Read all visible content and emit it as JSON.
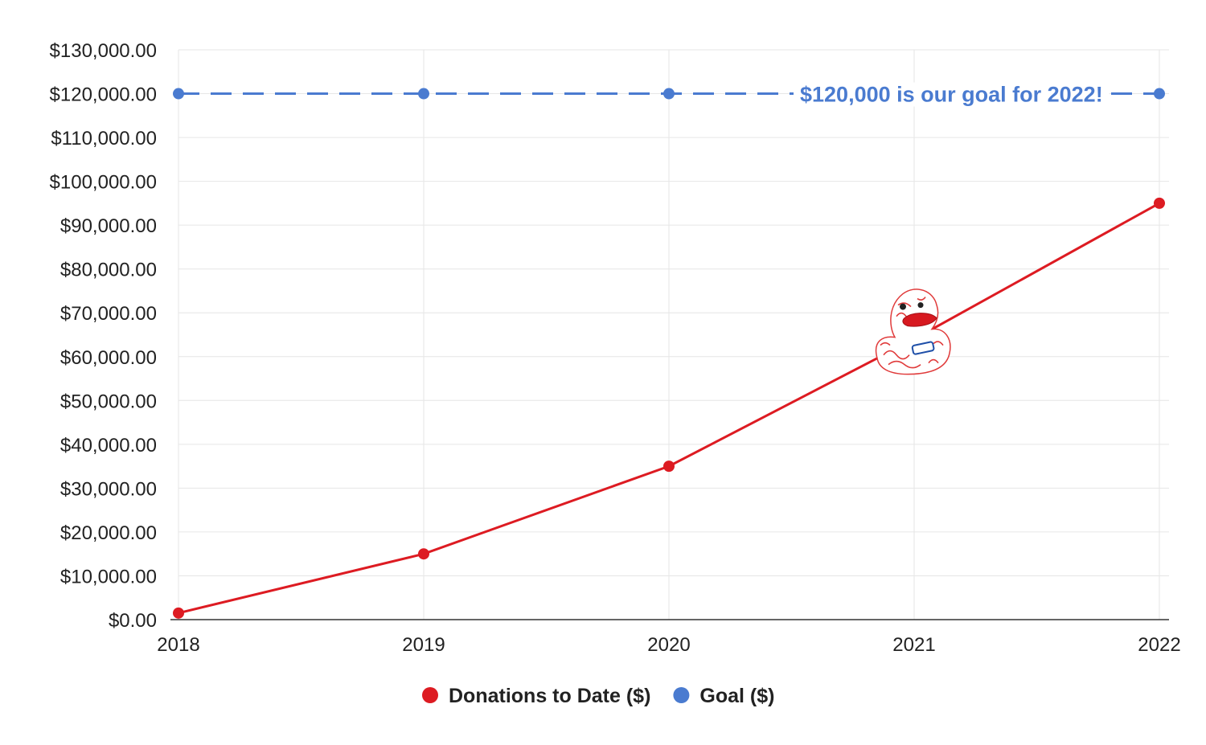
{
  "chart_data": {
    "type": "line",
    "x": [
      2018,
      2019,
      2020,
      2021,
      2022
    ],
    "xticks": [
      "2018",
      "2019",
      "2020",
      "2021",
      "2022"
    ],
    "ylim": [
      0,
      130000
    ],
    "yticks": [
      "$0.00",
      "$10,000.00",
      "$20,000.00",
      "$30,000.00",
      "$40,000.00",
      "$50,000.00",
      "$60,000.00",
      "$70,000.00",
      "$80,000.00",
      "$90,000.00",
      "$100,000.00",
      "$110,000.00",
      "$120,000.00",
      "$130,000.00"
    ],
    "ytick_values": [
      0,
      10000,
      20000,
      30000,
      40000,
      50000,
      60000,
      70000,
      80000,
      90000,
      100000,
      110000,
      120000,
      130000
    ],
    "grid": true,
    "legend_position": "bottom",
    "series": [
      {
        "name": "Donations to Date ($)",
        "color": "#dd1b22",
        "style": "solid",
        "values": [
          1500,
          15000,
          35000,
          64000,
          95000
        ]
      },
      {
        "name": "Goal ($)",
        "color": "#4a7bd0",
        "style": "dashed",
        "values": [
          120000,
          120000,
          120000,
          120000,
          120000
        ]
      }
    ],
    "annotation": {
      "text": "$120,000 is our goal for 2022!",
      "x": 2021,
      "y": 120000,
      "color": "#4a7bd0"
    },
    "marker_image": {
      "name": "rubber-duck-mascot",
      "x": 2021,
      "y": 67000
    }
  }
}
